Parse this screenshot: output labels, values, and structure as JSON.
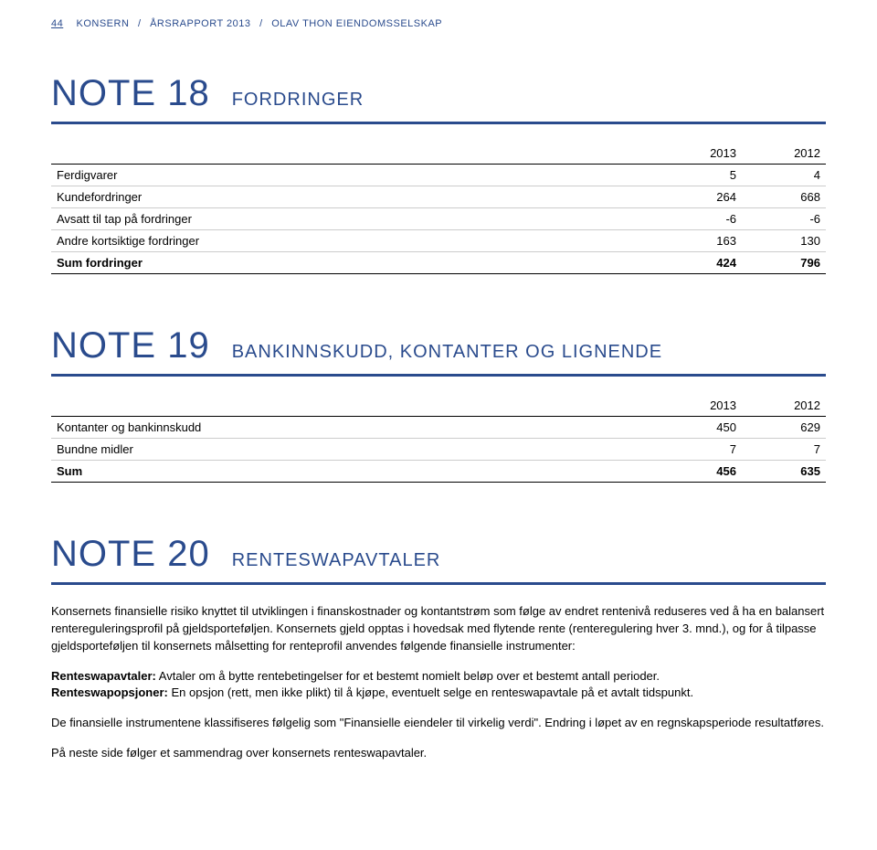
{
  "header": {
    "page_num": "44",
    "section": "KONSERN",
    "report": "ÅRSRAPPORT 2013",
    "company": "OLAV THON EIENDOMSSELSKAP"
  },
  "note18": {
    "num": "NOTE 18",
    "label": "FORDRINGER",
    "columns": [
      "",
      "2013",
      "2012"
    ],
    "rows": [
      {
        "label": "Ferdigvarer",
        "c1": "5",
        "c2": "4"
      },
      {
        "label": "Kundefordringer",
        "c1": "264",
        "c2": "668"
      },
      {
        "label": "Avsatt til tap på fordringer",
        "c1": "-6",
        "c2": "-6"
      },
      {
        "label": "Andre kortsiktige fordringer",
        "c1": "163",
        "c2": "130"
      }
    ],
    "sum": {
      "label": "Sum fordringer",
      "c1": "424",
      "c2": "796"
    }
  },
  "note19": {
    "num": "NOTE 19",
    "label": "BANKINNSKUDD, KONTANTER OG LIGNENDE",
    "columns": [
      "",
      "2013",
      "2012"
    ],
    "rows": [
      {
        "label": "Kontanter og bankinnskudd",
        "c1": "450",
        "c2": "629"
      },
      {
        "label": "Bundne midler",
        "c1": "7",
        "c2": "7"
      }
    ],
    "sum": {
      "label": "Sum",
      "c1": "456",
      "c2": "635"
    }
  },
  "note20": {
    "num": "NOTE 20",
    "label": "RENTESWAPAVTALER",
    "para1": "Konsernets finansielle risiko knyttet til utviklingen i finanskostnader og kontantstrøm som følge av endret rentenivå reduseres ved å ha en balansert rentereguleringsprofil på gjeldsporteføljen. Konsernets gjeld opptas i hovedsak med flytende rente (renteregulering hver 3. mnd.), og for å tilpasse gjeldsporteføljen til konsernets målsetting for renteprofil anvendes følgende finansielle instrumenter:",
    "para2_label": "Renteswapavtaler:",
    "para2_text": " Avtaler om å bytte rentebetingelser for et bestemt nomielt beløp over et bestemt antall perioder.",
    "para3_label": "Renteswapopsjoner:",
    "para3_text": " En opsjon (rett, men ikke plikt) til å kjøpe, eventuelt selge en renteswapavtale på et avtalt tidspunkt.",
    "para4": "De finansielle instrumentene klassifiseres følgelig som \"Finansielle eiendeler til virkelig verdi\". Endring i løpet av en regnskapsperiode resultatføres.",
    "para5": "På neste side følger et sammendrag over konsernets  renteswapavtaler."
  }
}
